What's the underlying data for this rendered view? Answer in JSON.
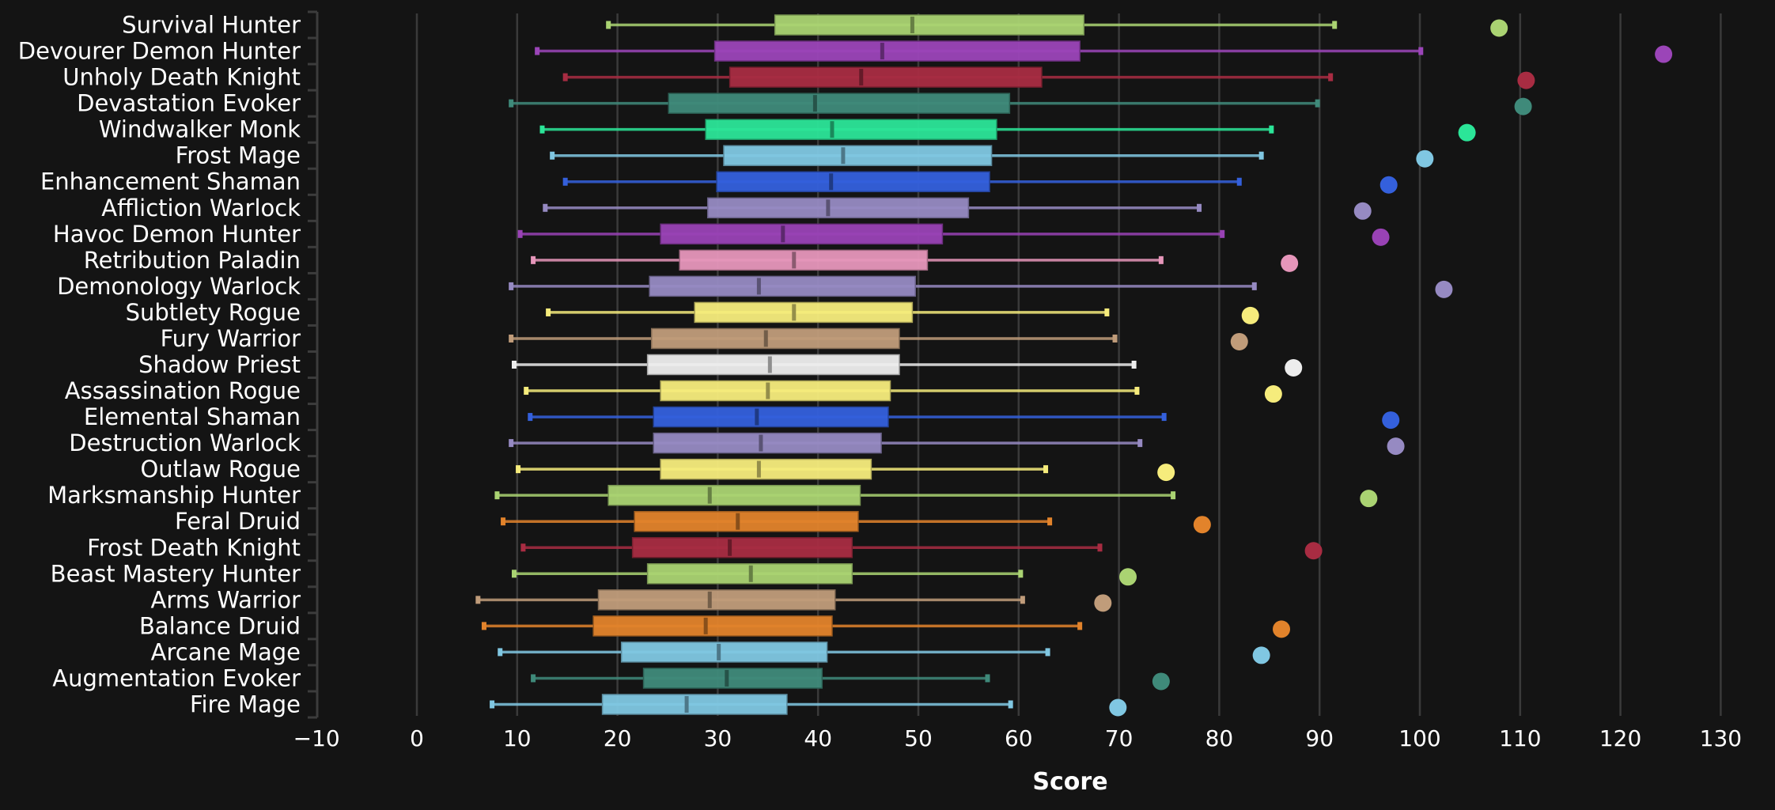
{
  "chart_data": {
    "type": "boxplot",
    "title": "",
    "xlabel": "Score",
    "ylabel": "",
    "xlim": [
      -10,
      132
    ],
    "x_ticks": [
      -10,
      0,
      10,
      20,
      30,
      40,
      50,
      60,
      70,
      80,
      90,
      100,
      110,
      120,
      130
    ],
    "x_tick_labels": [
      "−10",
      "0",
      "10",
      "20",
      "30",
      "40",
      "50",
      "60",
      "70",
      "80",
      "90",
      "100",
      "110",
      "120",
      "130"
    ],
    "grid": "vertical",
    "legend": "none",
    "series": [
      {
        "name": "Survival Hunter",
        "color": "#AAD372",
        "whisker_low": 19.1,
        "q1": 35.7,
        "median": 49.4,
        "q3": 66.5,
        "whisker_high": 91.5,
        "max_point": 107.9
      },
      {
        "name": "Devourer Demon Hunter",
        "color": "#9B45B8",
        "whisker_low": 12.0,
        "q1": 29.7,
        "median": 46.4,
        "q3": 66.1,
        "whisker_high": 100.1,
        "max_point": 124.3
      },
      {
        "name": "Unholy Death Knight",
        "color": "#A82C42",
        "whisker_low": 14.8,
        "q1": 31.2,
        "median": 44.3,
        "q3": 62.3,
        "whisker_high": 91.1,
        "max_point": 110.6
      },
      {
        "name": "Devastation Evoker",
        "color": "#3F8A7A",
        "whisker_low": 9.4,
        "q1": 25.1,
        "median": 39.7,
        "q3": 59.1,
        "whisker_high": 89.8,
        "max_point": 110.3
      },
      {
        "name": "Windwalker Monk",
        "color": "#2BE598",
        "whisker_low": 12.5,
        "q1": 28.8,
        "median": 41.4,
        "q3": 57.8,
        "whisker_high": 85.2,
        "max_point": 104.7
      },
      {
        "name": "Frost Mage",
        "color": "#80C7E2",
        "whisker_low": 13.5,
        "q1": 30.6,
        "median": 42.5,
        "q3": 57.3,
        "whisker_high": 84.2,
        "max_point": 100.5
      },
      {
        "name": "Enhancement Shaman",
        "color": "#3460DC",
        "whisker_low": 14.8,
        "q1": 29.9,
        "median": 41.3,
        "q3": 57.1,
        "whisker_high": 82.0,
        "max_point": 96.9
      },
      {
        "name": "Affliction Warlock",
        "color": "#968AC2",
        "whisker_low": 12.8,
        "q1": 29.0,
        "median": 41.0,
        "q3": 55.0,
        "whisker_high": 78.0,
        "max_point": 94.3
      },
      {
        "name": "Havoc Demon Hunter",
        "color": "#9942B5",
        "whisker_low": 10.3,
        "q1": 24.3,
        "median": 36.5,
        "q3": 52.4,
        "whisker_high": 80.3,
        "max_point": 96.1
      },
      {
        "name": "Retribution Paladin",
        "color": "#E696BA",
        "whisker_low": 11.6,
        "q1": 26.2,
        "median": 37.6,
        "q3": 50.9,
        "whisker_high": 74.2,
        "max_point": 87.0
      },
      {
        "name": "Demonology Warlock",
        "color": "#968AC2",
        "whisker_low": 9.4,
        "q1": 23.2,
        "median": 34.1,
        "q3": 49.7,
        "whisker_high": 83.5,
        "max_point": 102.4
      },
      {
        "name": "Subtlety Rogue",
        "color": "#F6EC7C",
        "whisker_low": 13.1,
        "q1": 27.7,
        "median": 37.6,
        "q3": 49.4,
        "whisker_high": 68.8,
        "max_point": 83.1
      },
      {
        "name": "Fury Warrior",
        "color": "#C09C7A",
        "whisker_low": 9.4,
        "q1": 23.4,
        "median": 34.8,
        "q3": 48.1,
        "whisker_high": 69.6,
        "max_point": 82.0
      },
      {
        "name": "Shadow Priest",
        "color": "#EDEDED",
        "whisker_low": 9.7,
        "q1": 23.0,
        "median": 35.2,
        "q3": 48.1,
        "whisker_high": 71.5,
        "max_point": 87.4
      },
      {
        "name": "Assassination Rogue",
        "color": "#F6EC7C",
        "whisker_low": 10.9,
        "q1": 24.3,
        "median": 35.0,
        "q3": 47.2,
        "whisker_high": 71.8,
        "max_point": 85.4
      },
      {
        "name": "Elemental Shaman",
        "color": "#3460DC",
        "whisker_low": 11.3,
        "q1": 23.6,
        "median": 33.9,
        "q3": 47.0,
        "whisker_high": 74.5,
        "max_point": 97.1
      },
      {
        "name": "Destruction Warlock",
        "color": "#968AC2",
        "whisker_low": 9.4,
        "q1": 23.6,
        "median": 34.3,
        "q3": 46.3,
        "whisker_high": 72.1,
        "max_point": 97.6
      },
      {
        "name": "Outlaw Rogue",
        "color": "#F6EC7C",
        "whisker_low": 10.1,
        "q1": 24.3,
        "median": 34.1,
        "q3": 45.3,
        "whisker_high": 62.7,
        "max_point": 74.7
      },
      {
        "name": "Marksmanship Hunter",
        "color": "#AAD372",
        "whisker_low": 8.0,
        "q1": 19.1,
        "median": 29.2,
        "q3": 44.2,
        "whisker_high": 75.4,
        "max_point": 94.9
      },
      {
        "name": "Feral Druid",
        "color": "#E2832B",
        "whisker_low": 8.6,
        "q1": 21.7,
        "median": 32.0,
        "q3": 44.0,
        "whisker_high": 63.1,
        "max_point": 78.3
      },
      {
        "name": "Frost Death Knight",
        "color": "#A82C42",
        "whisker_low": 10.6,
        "q1": 21.5,
        "median": 31.2,
        "q3": 43.4,
        "whisker_high": 68.1,
        "max_point": 89.4
      },
      {
        "name": "Beast Mastery Hunter",
        "color": "#AAD372",
        "whisker_low": 9.7,
        "q1": 23.0,
        "median": 33.3,
        "q3": 43.4,
        "whisker_high": 60.2,
        "max_point": 70.9
      },
      {
        "name": "Arms Warrior",
        "color": "#C09C7A",
        "whisker_low": 6.1,
        "q1": 18.1,
        "median": 29.2,
        "q3": 41.7,
        "whisker_high": 60.4,
        "max_point": 68.4
      },
      {
        "name": "Balance Druid",
        "color": "#E2832B",
        "whisker_low": 6.7,
        "q1": 17.6,
        "median": 28.8,
        "q3": 41.4,
        "whisker_high": 66.1,
        "max_point": 86.2
      },
      {
        "name": "Arcane Mage",
        "color": "#80C7E2",
        "whisker_low": 8.3,
        "q1": 20.4,
        "median": 30.1,
        "q3": 40.9,
        "whisker_high": 62.9,
        "max_point": 84.2
      },
      {
        "name": "Augmentation Evoker",
        "color": "#3F8A7A",
        "whisker_low": 11.6,
        "q1": 22.6,
        "median": 30.9,
        "q3": 40.4,
        "whisker_high": 56.9,
        "max_point": 74.2
      },
      {
        "name": "Fire Mage",
        "color": "#80C7E2",
        "whisker_low": 7.5,
        "q1": 18.5,
        "median": 26.9,
        "q3": 36.9,
        "whisker_high": 59.2,
        "max_point": 69.9
      }
    ]
  }
}
